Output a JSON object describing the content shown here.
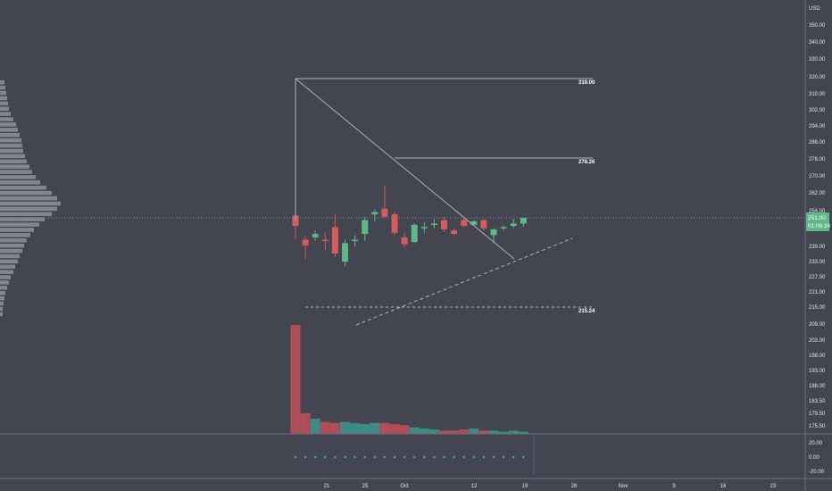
{
  "colors": {
    "background": "#434651",
    "up": "#5fb88a",
    "down": "#d65c5c",
    "volume_up": "#3c8b84",
    "volume_down": "#b04d58",
    "profile": "#8d929c",
    "text": "#e6e7ea",
    "line": "#c7cad1",
    "grid": "#5a5e6a",
    "price_label_bg": "#5fb88a",
    "osc_dot": "#2f9fd6"
  },
  "axis": {
    "currency": "USD",
    "price_ticks": [
      "350.00",
      "340.00",
      "330.00",
      "320.00",
      "310.00",
      "302.00",
      "294.00",
      "286.00",
      "278.00",
      "270.00",
      "262.00",
      "254.00",
      "239.00",
      "233.00",
      "227.00",
      "221.00",
      "215.00",
      "209.00",
      "203.00",
      "198.00",
      "193.00",
      "188.00",
      "183.50",
      "179.50",
      "175.50"
    ],
    "osc_ticks": [
      "20.00",
      "0.00",
      "-20.00"
    ],
    "current_price": "251.00",
    "countdown": "01:06:24"
  },
  "annotations": {
    "level_high": "319.00",
    "level_mid": "278.26",
    "level_low": "215.24"
  },
  "chart_data": {
    "type": "candlestick",
    "title": "",
    "x_labels": [
      "21",
      "25",
      "Oct",
      "12",
      "19",
      "26",
      "Nov",
      "9",
      "16",
      "23"
    ],
    "ylim": [
      175,
      350
    ],
    "candles": [
      {
        "o": 253,
        "h": 319,
        "l": 232,
        "c": 244
      },
      {
        "o": 232,
        "h": 235,
        "l": 215,
        "c": 227
      },
      {
        "o": 234,
        "h": 240,
        "l": 231,
        "c": 237
      },
      {
        "o": 232,
        "h": 238,
        "l": 223,
        "c": 231
      },
      {
        "o": 243,
        "h": 254,
        "l": 217,
        "c": 220
      },
      {
        "o": 213,
        "h": 232,
        "l": 209,
        "c": 229
      },
      {
        "o": 231,
        "h": 236,
        "l": 226,
        "c": 232
      },
      {
        "o": 237,
        "h": 252,
        "l": 231,
        "c": 249
      },
      {
        "o": 254,
        "h": 258,
        "l": 248,
        "c": 256
      },
      {
        "o": 259,
        "h": 279,
        "l": 251,
        "c": 252
      },
      {
        "o": 254,
        "h": 256,
        "l": 236,
        "c": 238
      },
      {
        "o": 234,
        "h": 238,
        "l": 225,
        "c": 228
      },
      {
        "o": 230,
        "h": 246,
        "l": 229,
        "c": 245
      },
      {
        "o": 242,
        "h": 247,
        "l": 238,
        "c": 243
      },
      {
        "o": 245,
        "h": 250,
        "l": 242,
        "c": 246
      },
      {
        "o": 249,
        "h": 252,
        "l": 239,
        "c": 241
      },
      {
        "o": 240,
        "h": 242,
        "l": 236,
        "c": 237
      },
      {
        "o": 249,
        "h": 251,
        "l": 243,
        "c": 244
      },
      {
        "o": 245,
        "h": 249,
        "l": 244,
        "c": 248
      },
      {
        "o": 249,
        "h": 250,
        "l": 240,
        "c": 242
      },
      {
        "o": 236,
        "h": 242,
        "l": 229,
        "c": 241
      },
      {
        "o": 242,
        "h": 245,
        "l": 240,
        "c": 243
      },
      {
        "o": 244,
        "h": 250,
        "l": 242,
        "c": 246
      },
      {
        "o": 246,
        "h": 251,
        "l": 243,
        "c": 251
      }
    ],
    "volume": [
      100,
      19,
      14,
      11,
      10,
      11,
      10,
      9,
      10,
      10,
      9,
      8,
      6,
      5,
      4,
      3,
      3,
      4,
      5,
      3,
      3,
      2,
      3,
      2
    ],
    "volume_profile": [
      5,
      6,
      7,
      8,
      9,
      10,
      12,
      15,
      18,
      20,
      22,
      24,
      25,
      26,
      28,
      30,
      33,
      36,
      40,
      45,
      52,
      58,
      64,
      68,
      64,
      58,
      50,
      44,
      38,
      34,
      30,
      27,
      25,
      22,
      20,
      17,
      15,
      12,
      10,
      8,
      6,
      5,
      4,
      3,
      3
    ]
  }
}
